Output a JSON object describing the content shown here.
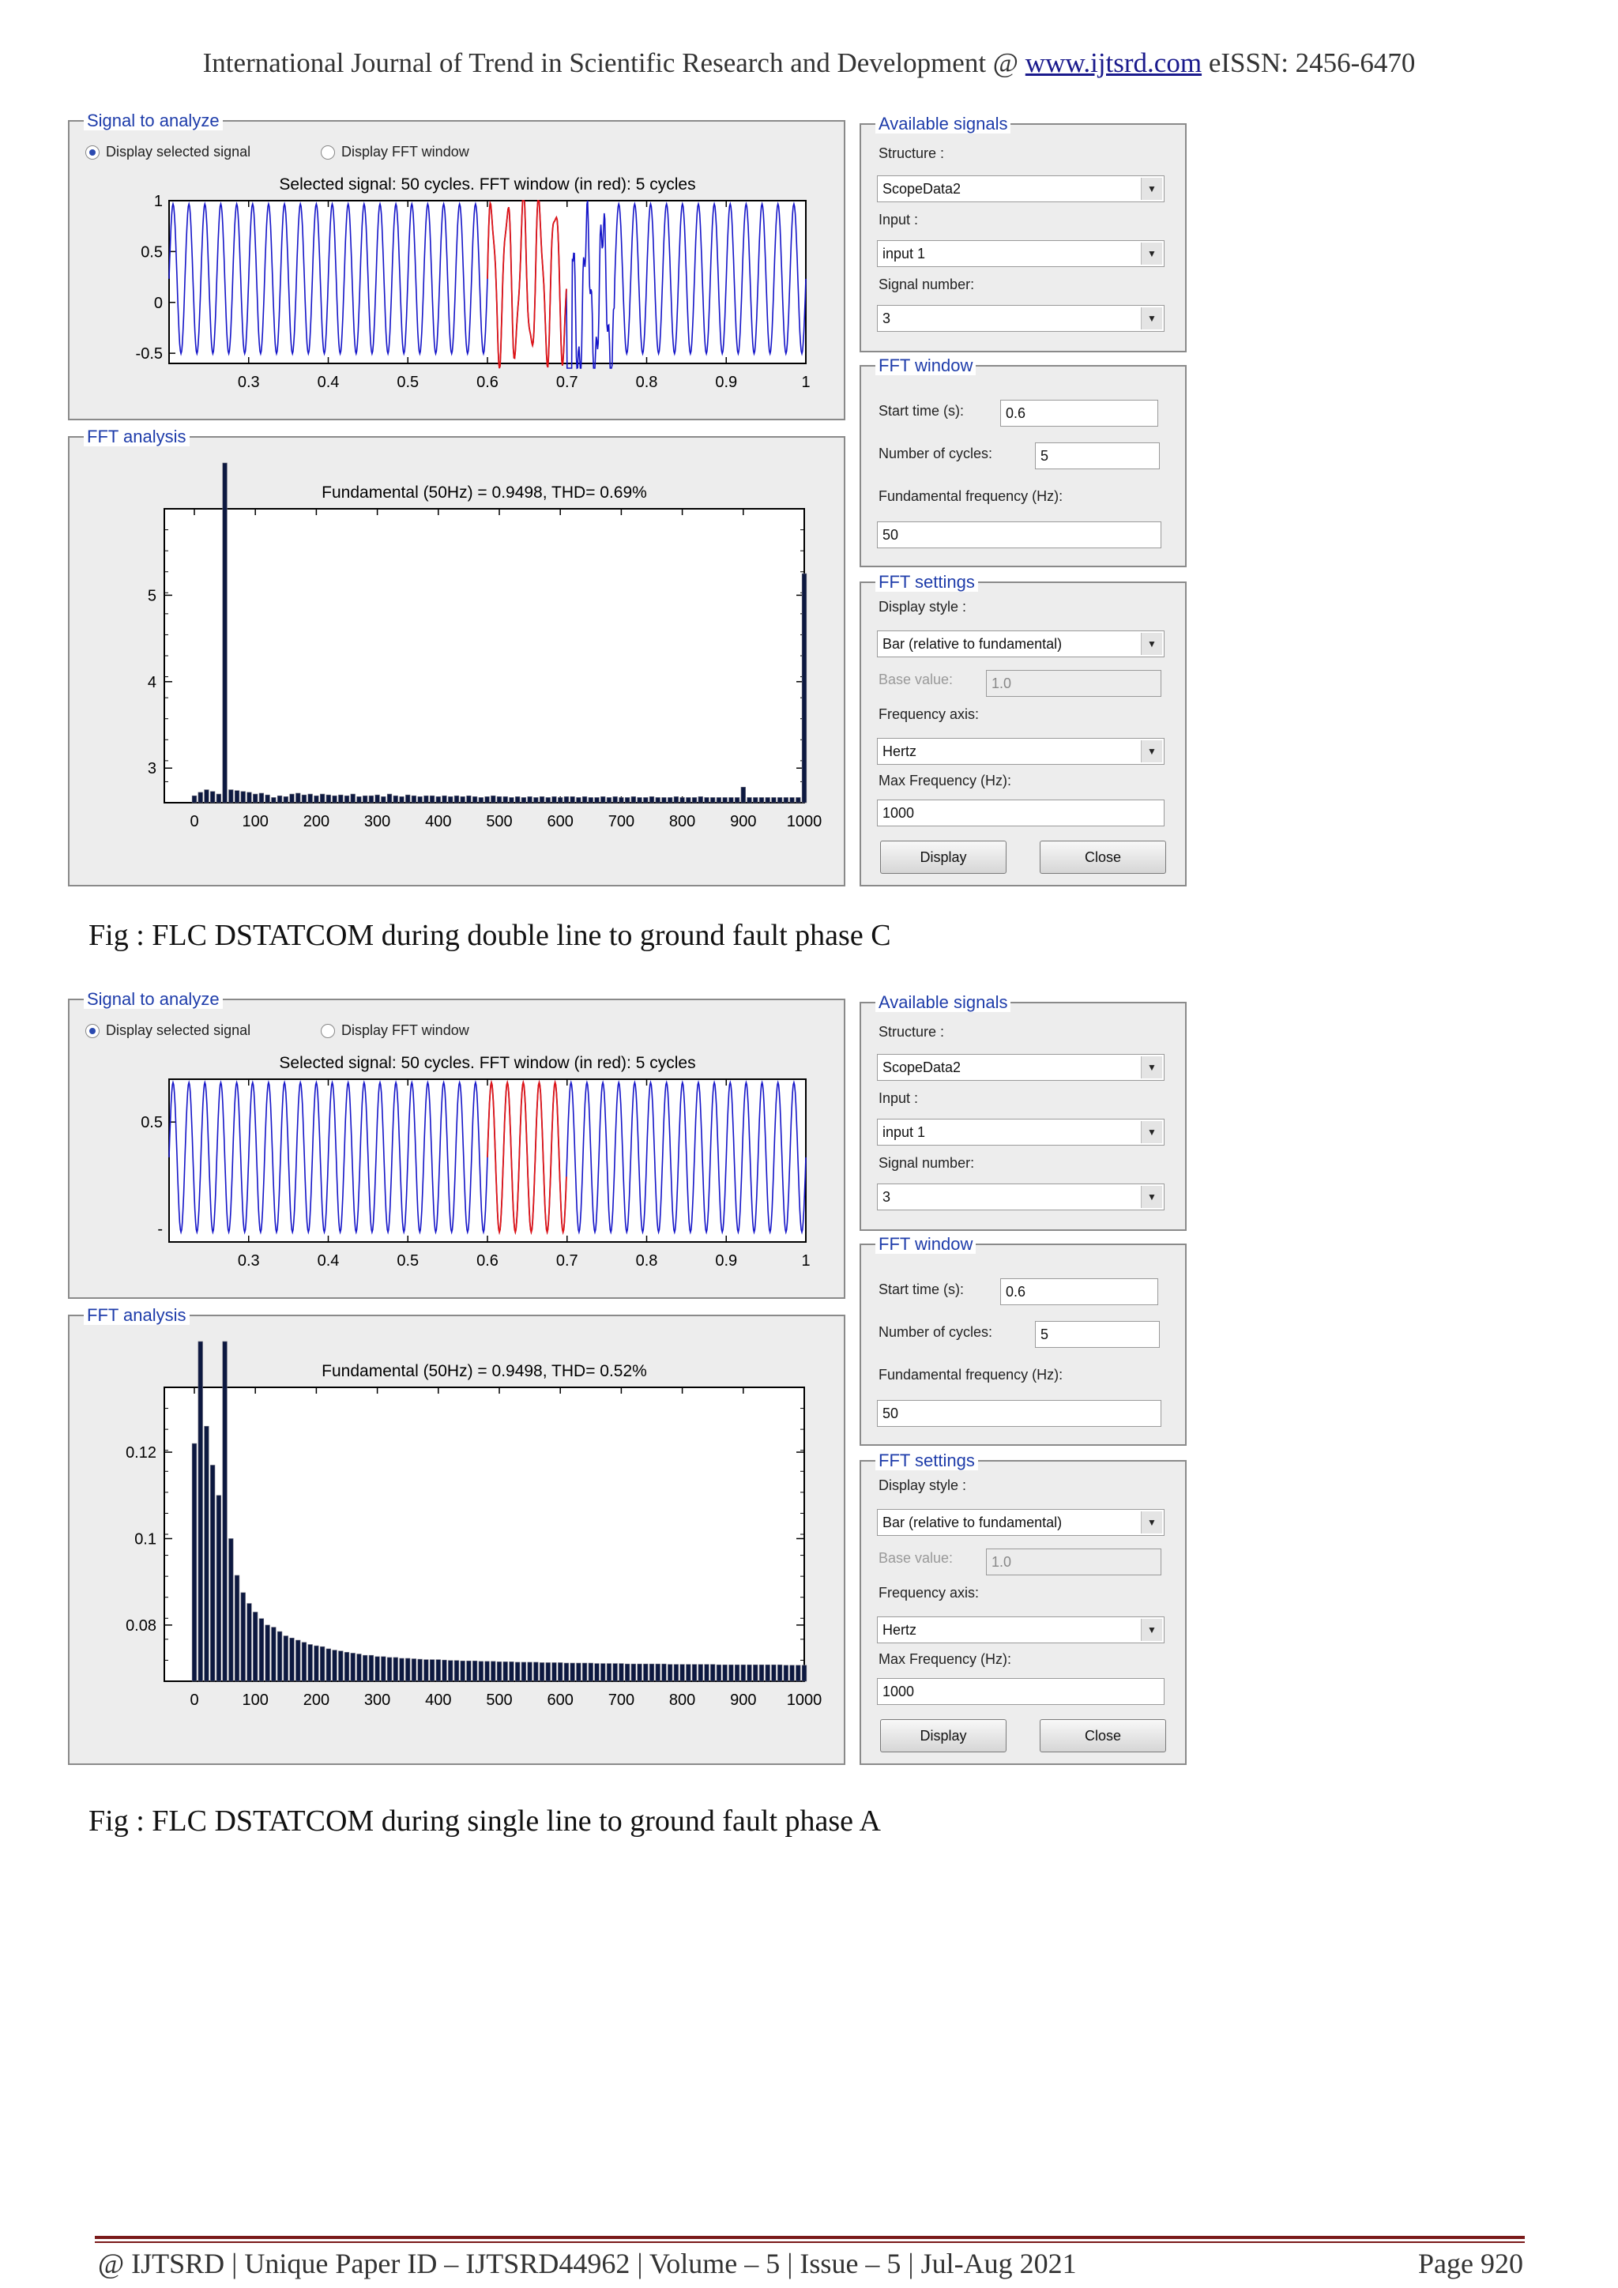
{
  "header": {
    "prefix": "International Journal of Trend in Scientific Research and Development @ ",
    "link": "www.ijtsrd.com",
    "suffix": " eISSN: 2456-6470"
  },
  "footer": {
    "text": "@ IJTSRD | Unique Paper ID – IJTSRD44962 | Volume – 5 | Issue – 5 | Jul-Aug 2021",
    "page": "Page 920"
  },
  "gui_labels": {
    "signal_panel_title": "Signal to analyze",
    "radio_selected": "Display selected signal",
    "radio_fft_window": "Display FFT window",
    "fft_analysis_title": "FFT analysis",
    "available_signals_title": "Available signals",
    "structure_label": "Structure :",
    "input_label": "Input :",
    "signal_number_label": "Signal number:",
    "fft_window_title": "FFT window",
    "start_time_label": "Start time (s):",
    "cycles_label": "Number of cycles:",
    "fund_freq_label": "Fundamental frequency (Hz):",
    "fft_settings_title": "FFT settings",
    "display_style_label": "Display style :",
    "base_value_label": "Base value:",
    "freq_axis_label": "Frequency axis:",
    "max_freq_label": "Max Frequency (Hz):",
    "display_button": "Display",
    "close_button": "Close"
  },
  "figures": [
    {
      "caption": "Fig : FLC DSTATCOM during double line to ground fault phase C",
      "fields": {
        "structure": "ScopeData2",
        "input": "input 1",
        "signal_number": "3",
        "start_time": "0.6",
        "cycles": "5",
        "fund_freq": "50",
        "display_style": "Bar (relative to fundamental)",
        "base_value": "1.0",
        "freq_axis": "Hertz",
        "max_freq": "1000"
      }
    },
    {
      "caption": "Fig : FLC DSTATCOM during single line to ground fault phase A",
      "fields": {
        "structure": "ScopeData2",
        "input": "input 1",
        "signal_number": "3",
        "start_time": "0.6",
        "cycles": "5",
        "fund_freq": "50",
        "display_style": "Bar (relative to fundamental)",
        "base_value": "1.0",
        "freq_axis": "Hertz",
        "max_freq": "1000"
      }
    }
  ],
  "chart_data": [
    {
      "type": "line",
      "title": "Selected signal: 50 cycles. FFT window (in red): 5 cycles",
      "x_ticks": [
        "0.3",
        "0.4",
        "0.5",
        "0.6",
        "0.7",
        "0.8",
        "0.9",
        "1"
      ],
      "y_ticks": [
        "1",
        "0.5",
        "0",
        "-0.5"
      ],
      "xlim": [
        0.2,
        1.0
      ],
      "ylim": [
        -0.6,
        1.0
      ],
      "cycles": 50,
      "window": [
        0.6,
        0.7
      ],
      "disturbance_at": 0.7,
      "colors": {
        "signal": "#1414c8",
        "window": "#e01414"
      }
    },
    {
      "type": "bar",
      "title": "Fundamental (50Hz) = 0.9498, THD= 0.69%",
      "x_ticks": [
        "0",
        "100",
        "200",
        "300",
        "400",
        "500",
        "600",
        "700",
        "800",
        "900",
        "1000"
      ],
      "y_ticks": [
        "5",
        "4",
        "3"
      ],
      "xlim": [
        0,
        1000
      ],
      "ylim": [
        2.6,
        6.0
      ],
      "series": [
        {
          "x": [
            0,
            10,
            20,
            30,
            40,
            50,
            60,
            70,
            80,
            90,
            100,
            110,
            120,
            130,
            140,
            150,
            160,
            170,
            180,
            190,
            200,
            210,
            220,
            230,
            240,
            250,
            260,
            270,
            280,
            290,
            300,
            310,
            320,
            330,
            340,
            350,
            360,
            370,
            380,
            390,
            400,
            410,
            420,
            430,
            440,
            450,
            460,
            470,
            480,
            490,
            500,
            510,
            520,
            530,
            540,
            550,
            560,
            570,
            580,
            590,
            600,
            610,
            620,
            630,
            640,
            650,
            660,
            670,
            680,
            690,
            700,
            710,
            720,
            730,
            740,
            750,
            760,
            770,
            780,
            790,
            800,
            810,
            820,
            830,
            840,
            850,
            860,
            870,
            880,
            890,
            900,
            910,
            920,
            930,
            940,
            950,
            960,
            970,
            980,
            990,
            1000
          ],
          "values": [
            2.68,
            2.72,
            2.75,
            2.73,
            2.7,
            6.0,
            2.75,
            2.74,
            2.73,
            2.72,
            2.7,
            2.71,
            2.69,
            2.66,
            2.68,
            2.67,
            2.7,
            2.71,
            2.69,
            2.7,
            2.68,
            2.7,
            2.69,
            2.68,
            2.69,
            2.68,
            2.7,
            2.67,
            2.68,
            2.68,
            2.69,
            2.67,
            2.7,
            2.68,
            2.67,
            2.69,
            2.68,
            2.67,
            2.68,
            2.68,
            2.67,
            2.68,
            2.67,
            2.68,
            2.67,
            2.68,
            2.67,
            2.66,
            2.67,
            2.68,
            2.67,
            2.67,
            2.66,
            2.67,
            2.66,
            2.67,
            2.66,
            2.67,
            2.66,
            2.67,
            2.66,
            2.67,
            2.67,
            2.66,
            2.67,
            2.66,
            2.66,
            2.67,
            2.66,
            2.67,
            2.66,
            2.66,
            2.67,
            2.66,
            2.66,
            2.67,
            2.66,
            2.66,
            2.66,
            2.67,
            2.66,
            2.66,
            2.66,
            2.67,
            2.66,
            2.66,
            2.66,
            2.66,
            2.66,
            2.66,
            2.78,
            2.66,
            2.66,
            2.66,
            2.66,
            2.66,
            2.66,
            2.66,
            2.66,
            2.66,
            5.25
          ]
        }
      ]
    },
    {
      "type": "line",
      "title": "Selected signal: 50 cycles. FFT window (in red): 5 cycles",
      "x_ticks": [
        "0.3",
        "0.4",
        "0.5",
        "0.6",
        "0.7",
        "0.8",
        "0.9",
        "1"
      ],
      "y_ticks": [
        "0.5",
        "-"
      ],
      "xlim": [
        0.2,
        1.0
      ],
      "ylim": [
        -0.2,
        0.75
      ],
      "cycles": 50,
      "window": [
        0.6,
        0.7
      ],
      "colors": {
        "signal": "#1414c8",
        "window": "#e01414"
      }
    },
    {
      "type": "bar",
      "title": "Fundamental (50Hz) = 0.9498, THD= 0.52%",
      "x_ticks": [
        "0",
        "100",
        "200",
        "300",
        "400",
        "500",
        "600",
        "700",
        "800",
        "900",
        "1000"
      ],
      "y_ticks": [
        "0.12",
        "0.1",
        "0.08"
      ],
      "xlim": [
        0,
        1000
      ],
      "ylim": [
        0.067,
        0.135
      ],
      "series": [
        {
          "x": [
            0,
            10,
            20,
            30,
            40,
            50,
            60,
            70,
            80,
            90,
            100,
            110,
            120,
            130,
            140,
            150,
            160,
            170,
            180,
            190,
            200,
            210,
            220,
            230,
            240,
            250,
            260,
            270,
            280,
            290,
            300,
            310,
            320,
            330,
            340,
            350,
            360,
            370,
            380,
            390,
            400,
            410,
            420,
            430,
            440,
            450,
            460,
            470,
            480,
            490,
            500,
            510,
            520,
            530,
            540,
            550,
            560,
            570,
            580,
            590,
            600,
            610,
            620,
            630,
            640,
            650,
            660,
            670,
            680,
            690,
            700,
            710,
            720,
            730,
            740,
            750,
            760,
            770,
            780,
            790,
            800,
            810,
            820,
            830,
            840,
            850,
            860,
            870,
            880,
            890,
            900,
            910,
            920,
            930,
            940,
            950,
            960,
            970,
            980,
            990,
            1000
          ],
          "values": [
            0.122,
            0.135,
            0.126,
            0.117,
            0.11,
            0.135,
            0.1,
            0.0915,
            0.0875,
            0.085,
            0.083,
            0.0815,
            0.08,
            0.0795,
            0.0785,
            0.0775,
            0.077,
            0.0765,
            0.076,
            0.0755,
            0.0752,
            0.075,
            0.0745,
            0.0742,
            0.074,
            0.0737,
            0.0735,
            0.0733,
            0.073,
            0.073,
            0.0727,
            0.0727,
            0.0725,
            0.0725,
            0.0723,
            0.0723,
            0.0722,
            0.0721,
            0.072,
            0.072,
            0.072,
            0.0719,
            0.0718,
            0.0718,
            0.0717,
            0.0717,
            0.0717,
            0.0716,
            0.0716,
            0.0716,
            0.0715,
            0.0715,
            0.0715,
            0.0714,
            0.0714,
            0.0714,
            0.0714,
            0.0713,
            0.0713,
            0.0713,
            0.0713,
            0.0712,
            0.0712,
            0.0712,
            0.0712,
            0.0712,
            0.0711,
            0.0711,
            0.0711,
            0.0711,
            0.0711,
            0.071,
            0.071,
            0.071,
            0.071,
            0.071,
            0.071,
            0.071,
            0.0709,
            0.0709,
            0.0709,
            0.0709,
            0.0709,
            0.0709,
            0.0709,
            0.0709,
            0.0708,
            0.0708,
            0.0708,
            0.0708,
            0.0708,
            0.0708,
            0.0708,
            0.0708,
            0.0708,
            0.0708,
            0.0708,
            0.0707,
            0.0707,
            0.0707,
            0.0707
          ]
        }
      ]
    }
  ]
}
